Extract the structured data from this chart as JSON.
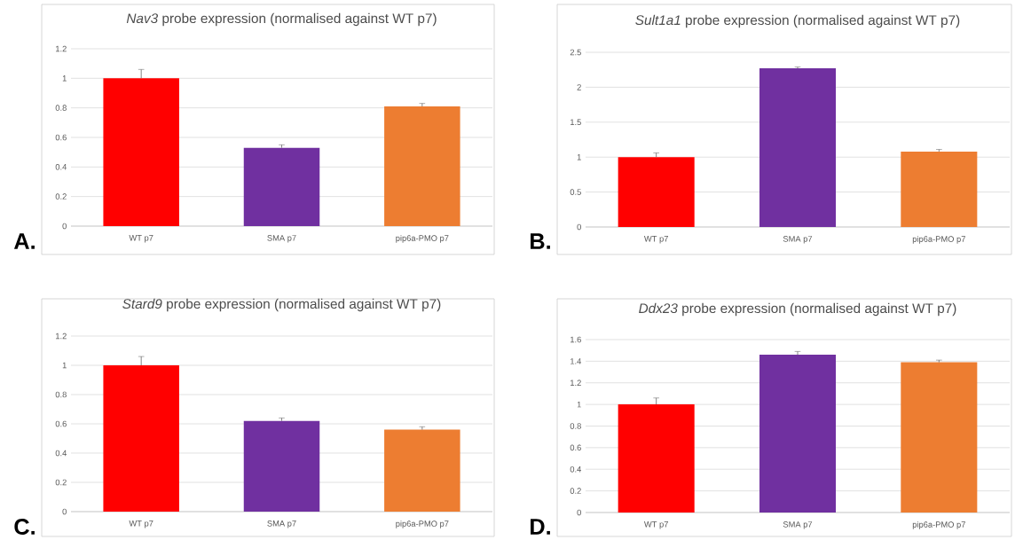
{
  "chart_data": [
    {
      "type": "bar",
      "title": "*Nav3* probe expression (normalised against WT p7)",
      "categories": [
        "WT p7",
        "SMA p7",
        "pip6a-PMO p7"
      ],
      "values": [
        1.0,
        0.53,
        0.81
      ],
      "errors": [
        0.06,
        0.02,
        0.02
      ],
      "colors": [
        "#ff0000",
        "#7030a0",
        "#ed7d31"
      ],
      "ylim": [
        0,
        1.2
      ],
      "yticks": [
        0,
        0.2,
        0.4,
        0.6,
        0.8,
        1,
        1.2
      ],
      "grid": "y",
      "annotations": [
        "A."
      ]
    },
    {
      "type": "bar",
      "title": "*Sult1a1* probe expression (normalised against WT p7)",
      "categories": [
        "WT p7",
        "SMA p7",
        "pip6a-PMO p7"
      ],
      "values": [
        1.0,
        2.27,
        1.08
      ],
      "errors": [
        0.06,
        0.02,
        0.03
      ],
      "colors": [
        "#ff0000",
        "#7030a0",
        "#ed7d31"
      ],
      "ylim": [
        0,
        2.5
      ],
      "yticks": [
        0,
        0.5,
        1,
        1.5,
        2,
        2.5
      ],
      "grid": "y",
      "annotations": [
        "B."
      ]
    },
    {
      "type": "bar",
      "title": "*Stard9* probe expression (normalised against WT p7)",
      "categories": [
        "WT p7",
        "SMA p7",
        "pip6a-PMO p7"
      ],
      "values": [
        1.0,
        0.62,
        0.56
      ],
      "errors": [
        0.06,
        0.02,
        0.02
      ],
      "colors": [
        "#ff0000",
        "#7030a0",
        "#ed7d31"
      ],
      "ylim": [
        0,
        1.2
      ],
      "yticks": [
        0,
        0.2,
        0.4,
        0.6,
        0.8,
        1,
        1.2
      ],
      "grid": "y",
      "annotations": [
        "C."
      ]
    },
    {
      "type": "bar",
      "title": "*Ddx23* probe expression (normalised against WT p7)",
      "categories": [
        "WT p7",
        "SMA p7",
        "pip6a-PMO p7"
      ],
      "values": [
        1.0,
        1.46,
        1.39
      ],
      "errors": [
        0.06,
        0.03,
        0.02
      ],
      "colors": [
        "#ff0000",
        "#7030a0",
        "#ed7d31"
      ],
      "ylim": [
        0,
        1.6
      ],
      "yticks": [
        0,
        0.2,
        0.4,
        0.6,
        0.8,
        1,
        1.2,
        1.4,
        1.6
      ],
      "grid": "y",
      "annotations": [
        "D."
      ]
    }
  ]
}
